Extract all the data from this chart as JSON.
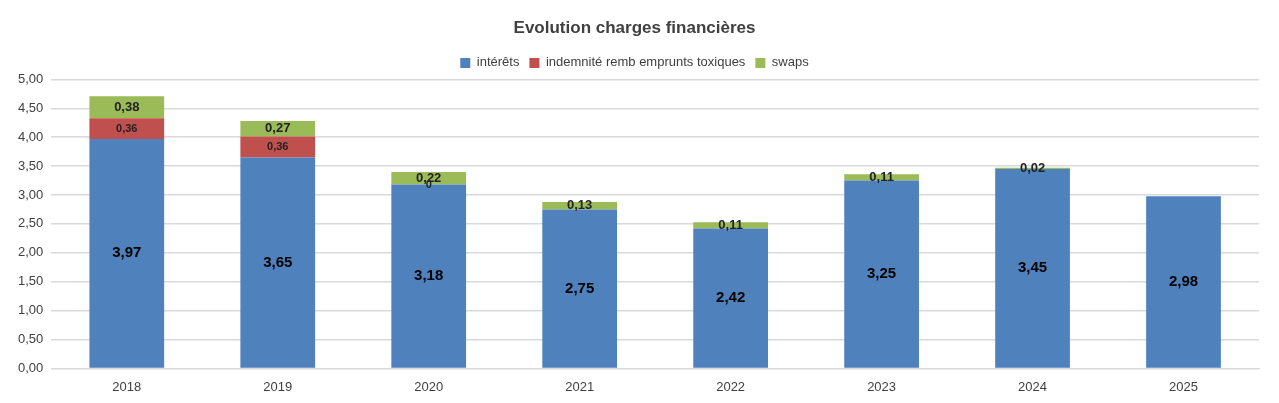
{
  "chart_data": {
    "type": "bar",
    "title": "Evolution charges financières",
    "stacked": true,
    "legend": "top",
    "grid": "y",
    "categories": [
      "2018",
      "2019",
      "2020",
      "2021",
      "2022",
      "2023",
      "2024",
      "2025"
    ],
    "ylim": [
      0,
      5
    ],
    "yticks": [
      {
        "value": 0,
        "label": "0,00"
      },
      {
        "value": 0.5,
        "label": "0,50"
      },
      {
        "value": 1,
        "label": "1,00"
      },
      {
        "value": 1.5,
        "label": "1,50"
      },
      {
        "value": 2,
        "label": "2,00"
      },
      {
        "value": 2.5,
        "label": "2,50"
      },
      {
        "value": 3,
        "label": "3,00"
      },
      {
        "value": 3.5,
        "label": "3,50"
      },
      {
        "value": 4,
        "label": "4,00"
      },
      {
        "value": 4.5,
        "label": "4,50"
      },
      {
        "value": 5,
        "label": "5,00"
      }
    ],
    "series": [
      {
        "name": "intérêts",
        "color": "#4f81bd",
        "values": [
          3.97,
          3.65,
          3.18,
          2.75,
          2.42,
          3.25,
          3.45,
          2.98
        ],
        "value_labels": [
          "3,97",
          "3,65",
          "3,18",
          "2,75",
          "2,42",
          "3,25",
          "3,45",
          "2,98"
        ]
      },
      {
        "name": "indemnité remb emprunts toxiques",
        "color": "#c0504d",
        "values": [
          0.36,
          0.36,
          0,
          null,
          null,
          null,
          null,
          null
        ],
        "value_labels": [
          "0,36",
          "0,36",
          "0",
          null,
          null,
          null,
          null,
          null
        ]
      },
      {
        "name": "swaps",
        "color": "#9bbb59",
        "values": [
          0.38,
          0.27,
          0.22,
          0.13,
          0.11,
          0.11,
          0.02,
          null
        ],
        "value_labels": [
          "0,38",
          "0,27",
          "0,22",
          "0,13",
          "0,11",
          "0,11",
          "0,02",
          null
        ]
      }
    ]
  }
}
